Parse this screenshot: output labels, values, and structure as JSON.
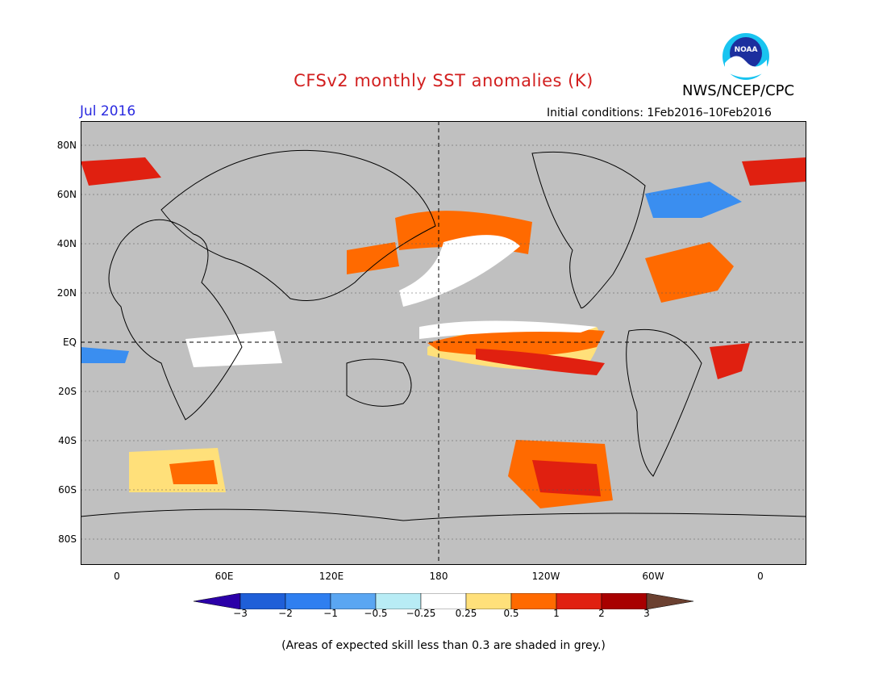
{
  "title": "CFSv2 monthly SST anomalies (K)",
  "agency": "NWS/NCEP/CPC",
  "logo_text": "NOAA",
  "period": "Jul 2016",
  "initial_conditions": "Initial conditions: 1Feb2016–10Feb2016",
  "lat_labels": [
    "80N",
    "60N",
    "40N",
    "20N",
    "EQ",
    "20S",
    "40S",
    "60S",
    "80S"
  ],
  "lon_labels": [
    "0",
    "60E",
    "120E",
    "180",
    "120W",
    "60W",
    "0"
  ],
  "colorbar": {
    "labels": [
      "−3",
      "−2",
      "−1",
      "−0.5",
      "−0.25",
      "0.25",
      "0.5",
      "1",
      "2",
      "3"
    ],
    "colors": [
      "#2b00a8",
      "#1f5fd8",
      "#2f7ff0",
      "#5aa6f2",
      "#b8ecf5",
      "#ffffff",
      "#ffe07a",
      "#ff6a00",
      "#e02010",
      "#a80000",
      "#6b4030"
    ]
  },
  "footer": "(Areas of expected skill less than 0.3 are shaded in grey.)",
  "colors": {
    "grey_mask": "#c0c0c0",
    "title": "#d21f1f",
    "period": "#2a2ae0"
  }
}
